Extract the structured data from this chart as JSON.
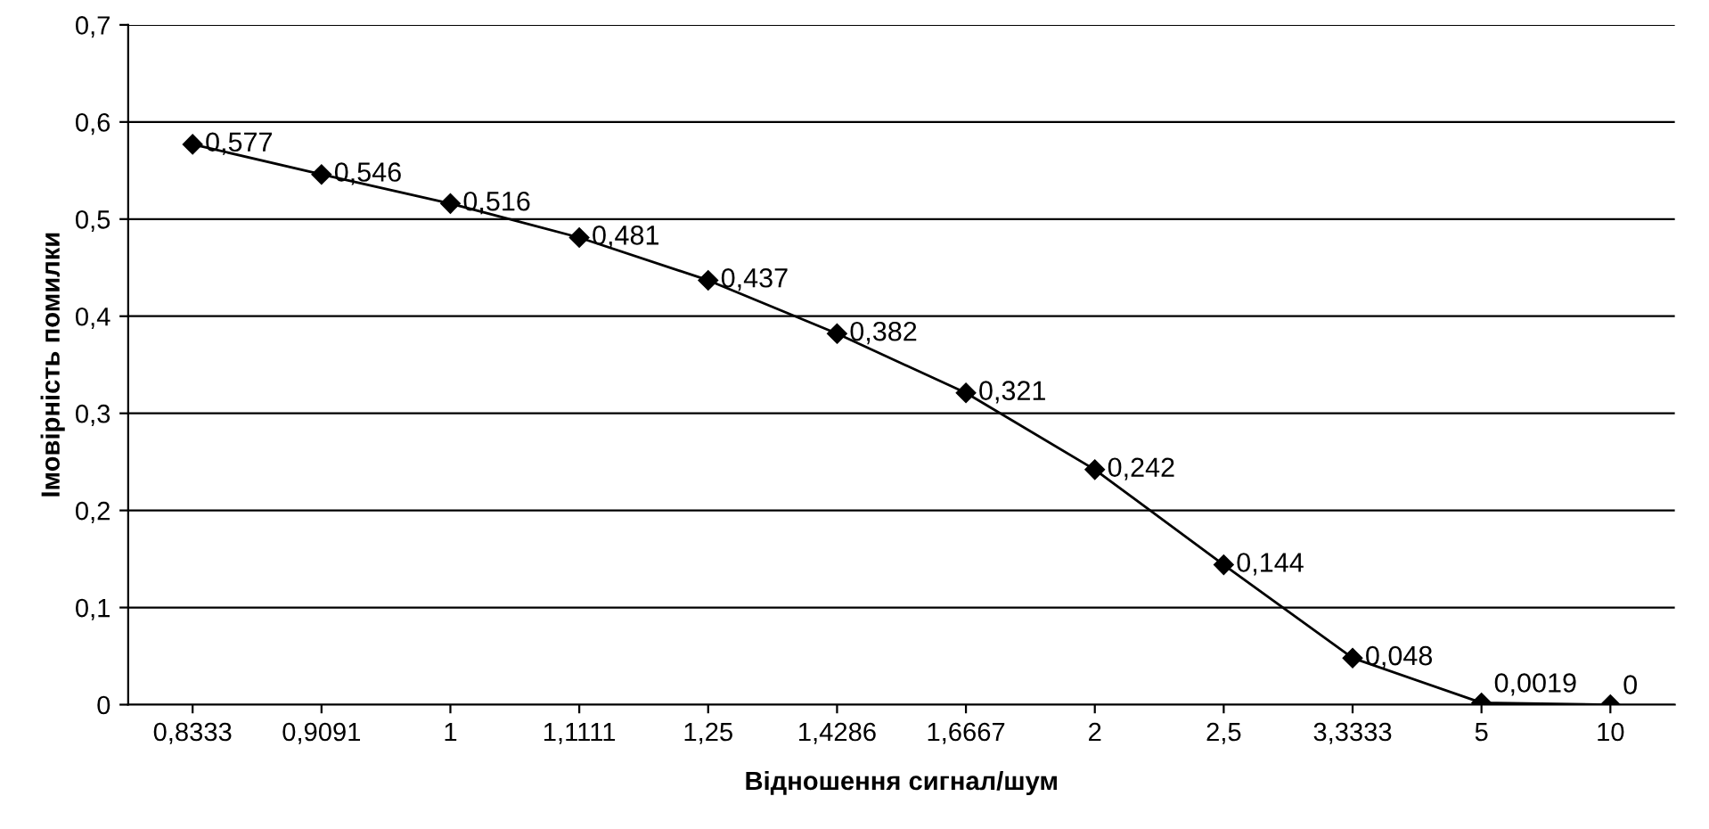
{
  "chart_data": {
    "type": "line",
    "xlabel": "Відношення сигнал/шум",
    "ylabel": "Імовірність помилки",
    "categories": [
      "0,8333",
      "0,9091",
      "1",
      "1,1111",
      "1,25",
      "1,4286",
      "1,6667",
      "2",
      "2,5",
      "3,3333",
      "5",
      "10"
    ],
    "series": [
      {
        "color": "#000000",
        "values": [
          0.577,
          0.546,
          0.516,
          0.481,
          0.437,
          0.382,
          0.321,
          0.242,
          0.144,
          0.048,
          0.0019,
          0
        ],
        "value_labels": [
          "0,577",
          "0,546",
          "0,516",
          "0,481",
          "0,437",
          "0,382",
          "0,321",
          "0,242",
          "0,144",
          "0,048",
          "0,0019",
          "0"
        ]
      }
    ],
    "ylim": [
      0,
      0.7
    ],
    "yticks": [
      {
        "value": 0,
        "label": "0"
      },
      {
        "value": 0.1,
        "label": "0,1"
      },
      {
        "value": 0.2,
        "label": "0,2"
      },
      {
        "value": 0.3,
        "label": "0,3"
      },
      {
        "value": 0.4,
        "label": "0,4"
      },
      {
        "value": 0.5,
        "label": "0,5"
      },
      {
        "value": 0.6,
        "label": "0,6"
      },
      {
        "value": 0.7,
        "label": "0,7"
      }
    ],
    "grid": "y",
    "marker": "diamond",
    "line_style": "solid",
    "legend": false
  }
}
